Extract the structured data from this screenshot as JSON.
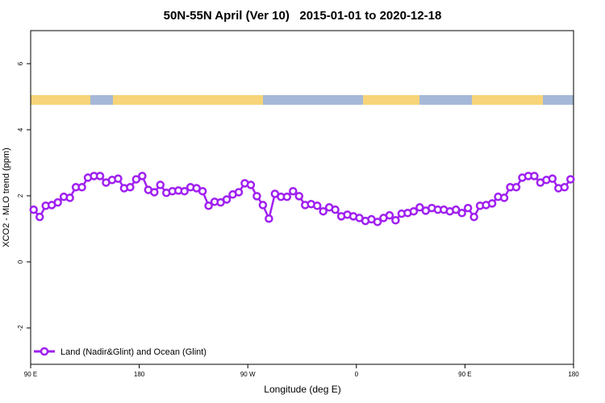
{
  "chart_data": {
    "type": "line",
    "title": "50N-55N April (Ver 10)   2015-01-01 to 2020-12-18",
    "x_label": "Longitude (deg E)",
    "y_label": "XCO2 - MLO trend (ppm)",
    "x": [
      92.5,
      97.5,
      102.5,
      107.5,
      112.5,
      117.5,
      122.5,
      127.5,
      132.5,
      137.5,
      142.5,
      147.5,
      152.5,
      157.5,
      162.5,
      167.5,
      172.5,
      177.5,
      182.5,
      187.5,
      192.5,
      197.5,
      202.5,
      207.5,
      212.5,
      217.5,
      222.5,
      227.5,
      232.5,
      237.5,
      242.5,
      247.5,
      252.5,
      257.5,
      262.5,
      267.5,
      272.5,
      277.5,
      282.5,
      287.5,
      292.5,
      297.5,
      302.5,
      307.5,
      312.5,
      317.5,
      322.5,
      327.5,
      332.5,
      337.5,
      342.5,
      347.5,
      352.5,
      357.5,
      362.5,
      367.5,
      372.5,
      377.5,
      382.5,
      387.5,
      392.5,
      397.5,
      402.5,
      407.5,
      412.5,
      417.5,
      422.5,
      427.5,
      432.5,
      437.5,
      442.5,
      447.5,
      452.5,
      457.5,
      462.5,
      467.5,
      472.5,
      477.5,
      482.5,
      487.5,
      492.5,
      497.5,
      502.5,
      507.5,
      512.5,
      517.5,
      522.5,
      527.5,
      532.5,
      537.5
    ],
    "series": [
      {
        "name": "Land (Nadir&Glint) and Ocean (Glint)",
        "color": "#a020f0",
        "values": [
          1.58,
          1.36,
          1.7,
          1.72,
          1.8,
          1.97,
          1.94,
          2.26,
          2.26,
          2.55,
          2.6,
          2.6,
          2.4,
          2.48,
          2.52,
          2.23,
          2.26,
          2.5,
          2.6,
          2.18,
          2.11,
          2.33,
          2.09,
          2.14,
          2.16,
          2.14,
          2.26,
          2.23,
          2.14,
          1.7,
          1.82,
          1.8,
          1.89,
          2.04,
          2.11,
          2.38,
          2.33,
          1.99,
          1.72,
          1.31,
          2.06,
          1.97,
          1.97,
          2.14,
          1.99,
          1.72,
          1.75,
          1.7,
          1.53,
          1.65,
          1.58,
          1.38,
          1.43,
          1.38,
          1.33,
          1.24,
          1.29,
          1.21,
          1.33,
          1.41,
          1.26,
          1.46,
          1.48,
          1.53,
          1.65,
          1.55,
          1.63,
          1.58,
          1.58,
          1.53,
          1.58,
          1.48,
          1.63,
          1.36,
          1.7,
          1.72,
          1.77,
          1.97,
          1.94,
          2.26,
          2.26,
          2.55,
          2.6,
          2.6,
          2.4,
          2.48,
          2.52,
          2.23,
          2.26,
          2.5
        ]
      }
    ],
    "xlim": [
      90,
      540
    ],
    "xticks": [
      {
        "value": 90,
        "label": "90 E"
      },
      {
        "value": 180,
        "label": "180"
      },
      {
        "value": 270,
        "label": "90 W"
      },
      {
        "value": 360,
        "label": "0"
      },
      {
        "value": 450,
        "label": "90 E"
      },
      {
        "value": 540,
        "label": "180"
      }
    ],
    "ylim": [
      -3.1,
      7.0
    ],
    "yticks": [
      6,
      4,
      2,
      0,
      -2
    ],
    "legend": "bottom-left"
  }
}
